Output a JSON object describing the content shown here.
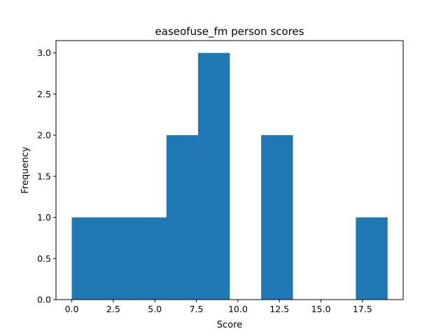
{
  "chart_data": {
    "type": "bar",
    "title": "easeofuse_fm person scores",
    "xlabel": "Score",
    "ylabel": "Frequency",
    "bin_edges": [
      0,
      1.9,
      3.8,
      5.7,
      7.6,
      9.5,
      11.4,
      13.3,
      15.2,
      17.1,
      19.0
    ],
    "values": [
      1,
      1,
      1,
      2,
      3,
      0,
      2,
      0,
      0,
      1
    ],
    "xlim": [
      -0.95,
      19.95
    ],
    "ylim": [
      0,
      3.15
    ],
    "xticks": [
      0.0,
      2.5,
      5.0,
      7.5,
      10.0,
      12.5,
      15.0,
      17.5
    ],
    "xtick_labels": [
      "0.0",
      "2.5",
      "5.0",
      "7.5",
      "10.0",
      "12.5",
      "15.0",
      "17.5"
    ],
    "yticks": [
      0.0,
      0.5,
      1.0,
      1.5,
      2.0,
      2.5,
      3.0
    ],
    "ytick_labels": [
      "0.0",
      "0.5",
      "1.0",
      "1.5",
      "2.0",
      "2.5",
      "3.0"
    ],
    "bar_color": "#1f77b4",
    "grid": false,
    "legend": "none"
  }
}
